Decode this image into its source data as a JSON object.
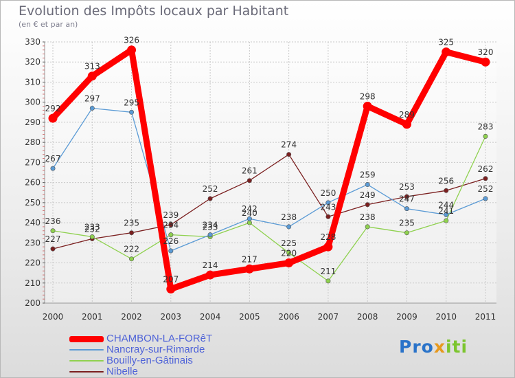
{
  "header": {
    "title": "Evolution des Impôts locaux par Habitant",
    "subtitle": "(en € et par an)"
  },
  "logo": {
    "text_p": "Pro",
    "text_x": "x",
    "text_i": "iti",
    "text_full": "Proxiti"
  },
  "chart_data": {
    "type": "line",
    "title": "Evolution des Impôts locaux par Habitant",
    "subtitle": "(en € et par an)",
    "xlabel": "",
    "ylabel": "",
    "ylim": [
      200,
      330
    ],
    "yticks": [
      200,
      210,
      220,
      230,
      240,
      250,
      260,
      270,
      280,
      290,
      300,
      310,
      320,
      330
    ],
    "grid": true,
    "legend_position": "bottom-left",
    "x": [
      "2000",
      "2001",
      "2002",
      "2003",
      "2004",
      "2005",
      "2006",
      "2007",
      "2008",
      "2009",
      "2010",
      "2011"
    ],
    "series": [
      {
        "name": "CHAMBON-LA-FORêT",
        "color": "#ff0000",
        "values": [
          292,
          313,
          326,
          207,
          214,
          217,
          220,
          228,
          298,
          289,
          325,
          320
        ]
      },
      {
        "name": "Nancray-sur-Rimarde",
        "color": "#5b9bd5",
        "values": [
          267,
          297,
          295,
          226,
          234,
          242,
          238,
          250,
          259,
          247,
          244,
          252
        ]
      },
      {
        "name": "Bouilly-en-Gâtinais",
        "color": "#8fd14f",
        "values": [
          236,
          233,
          222,
          234,
          233,
          240,
          225,
          211,
          238,
          235,
          241,
          283
        ]
      },
      {
        "name": "Nibelle",
        "color": "#7b2020",
        "values": [
          227,
          232,
          235,
          239,
          252,
          261,
          274,
          243,
          249,
          253,
          256,
          262
        ]
      }
    ]
  }
}
